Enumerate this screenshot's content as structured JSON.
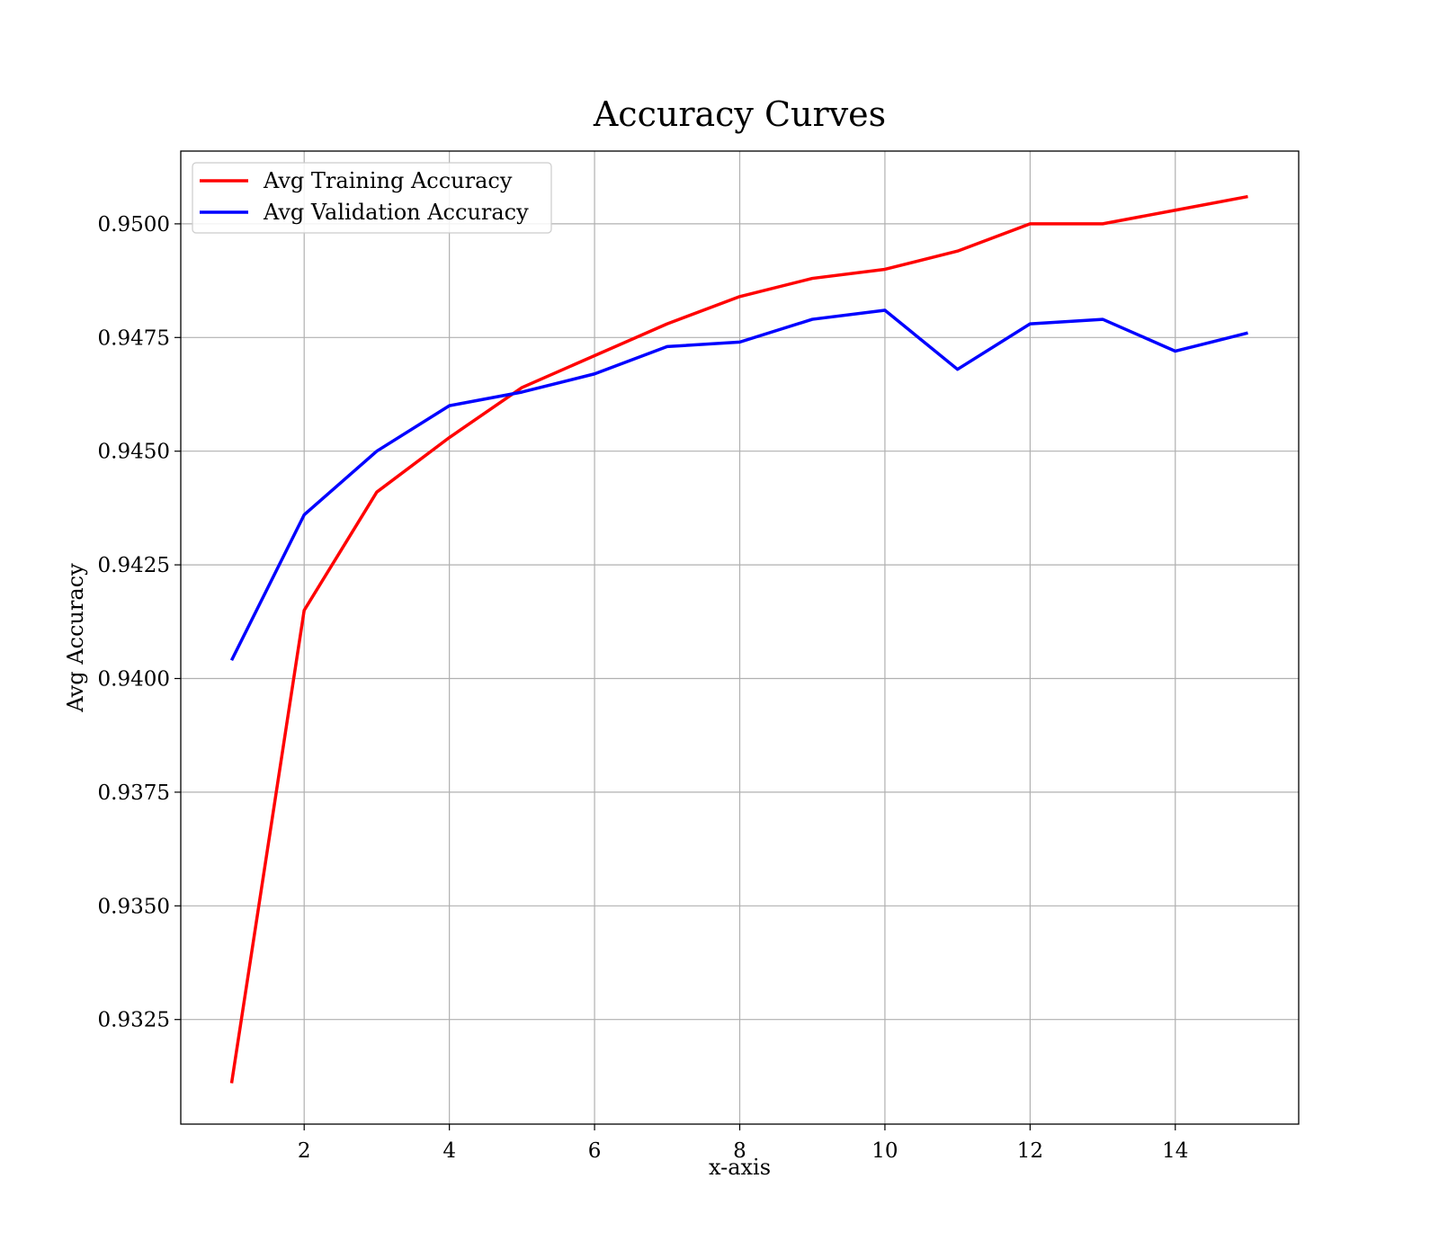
{
  "chart_data": {
    "type": "line",
    "title": "Accuracy Curves",
    "xlabel": "x-axis",
    "ylabel": "Avg Accuracy",
    "x": [
      1,
      2,
      3,
      4,
      5,
      6,
      7,
      8,
      9,
      10,
      11,
      12,
      13,
      14,
      15
    ],
    "xlim": [
      0.3,
      15.7
    ],
    "ylim": [
      0.9302,
      0.9516
    ],
    "xticks": [
      2,
      4,
      6,
      8,
      10,
      12,
      14
    ],
    "xtick_labels": [
      "2",
      "4",
      "6",
      "8",
      "10",
      "12",
      "14"
    ],
    "yticks": [
      0.9325,
      0.935,
      0.9375,
      0.94,
      0.9425,
      0.945,
      0.9475,
      0.95
    ],
    "ytick_labels": [
      "0.9325",
      "0.9350",
      "0.9375",
      "0.9400",
      "0.9425",
      "0.9450",
      "0.9475",
      "0.9500"
    ],
    "grid": true,
    "legend_position": "top-left",
    "series": [
      {
        "name": "Avg Training Accuracy",
        "color": "#ff0000",
        "values": [
          0.9311,
          0.9415,
          0.9441,
          0.9453,
          0.9464,
          0.9471,
          0.9478,
          0.9484,
          0.9488,
          0.949,
          0.9494,
          0.95,
          0.95,
          0.9503,
          0.9506
        ]
      },
      {
        "name": "Avg Validation Accuracy",
        "color": "#0000ff",
        "values": [
          0.9404,
          0.9436,
          0.945,
          0.946,
          0.9463,
          0.9467,
          0.9473,
          0.9474,
          0.9479,
          0.9481,
          0.9468,
          0.9478,
          0.9479,
          0.9472,
          0.9476
        ]
      }
    ]
  }
}
